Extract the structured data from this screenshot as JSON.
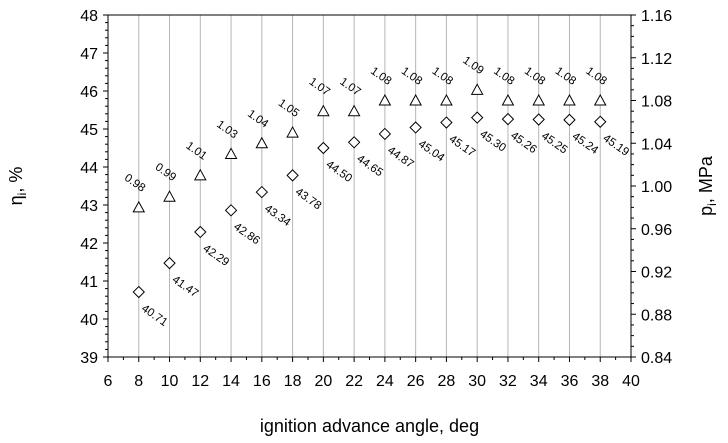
{
  "chart_data": {
    "type": "scatter",
    "x_label": "ignition advance angle, deg",
    "y_left_label": "ηi, %",
    "y_right_label": "pi, MPa",
    "x_range": [
      6,
      40
    ],
    "x_ticks": [
      6,
      8,
      10,
      12,
      14,
      16,
      18,
      20,
      22,
      24,
      26,
      28,
      30,
      32,
      34,
      36,
      38,
      40
    ],
    "y_left_range": [
      39,
      48
    ],
    "y_left_ticks": [
      39,
      40,
      41,
      42,
      43,
      44,
      45,
      46,
      47,
      48
    ],
    "y_right_range": [
      0.84,
      1.16
    ],
    "y_right_ticks": [
      "0.84",
      "0.88",
      "0.92",
      "0.96",
      "1.00",
      "1.04",
      "1.08",
      "1.12",
      "1.16"
    ],
    "vertical_grid": true,
    "series": [
      {
        "marker": "diamond",
        "axis": "left",
        "x": [
          8,
          10,
          12,
          14,
          16,
          18,
          20,
          22,
          24,
          26,
          28,
          30,
          32,
          34,
          36,
          38
        ],
        "y": [
          40.71,
          41.47,
          42.29,
          42.86,
          43.34,
          43.78,
          44.5,
          44.65,
          44.87,
          45.04,
          45.17,
          45.3,
          45.26,
          45.25,
          45.24,
          45.19
        ],
        "labels": [
          "40.71",
          "41.47",
          "42.29",
          "42.86",
          "43.34",
          "43.78",
          "44.50",
          "44.65",
          "44.87",
          "45.04",
          "45.17",
          "45.30",
          "45.26",
          "45.25",
          "45.24",
          "45.19"
        ]
      },
      {
        "marker": "triangle",
        "axis": "right",
        "x": [
          8,
          10,
          12,
          14,
          16,
          18,
          20,
          22,
          24,
          26,
          28,
          30,
          32,
          34,
          36,
          38
        ],
        "y": [
          0.98,
          0.99,
          1.01,
          1.03,
          1.04,
          1.05,
          1.07,
          1.07,
          1.08,
          1.08,
          1.08,
          1.09,
          1.08,
          1.08,
          1.08,
          1.08
        ],
        "labels": [
          "0.98",
          "0.99",
          "1.01",
          "1.03",
          "1.04",
          "1.05",
          "1.07",
          "1.07",
          "1.08",
          "1.08",
          "1.08",
          "1.09",
          "1.08",
          "1.08",
          "1.08",
          "1.08"
        ]
      }
    ]
  }
}
